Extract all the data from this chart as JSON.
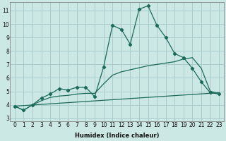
{
  "xlabel": "Humidex (Indice chaleur)",
  "background_color": "#cce8e4",
  "grid_color": "#aacccc",
  "line_color": "#1a6b5a",
  "xlim": [
    -0.5,
    23.5
  ],
  "ylim": [
    2.8,
    11.6
  ],
  "yticks": [
    3,
    4,
    5,
    6,
    7,
    8,
    9,
    10,
    11
  ],
  "xticks": [
    0,
    1,
    2,
    3,
    4,
    5,
    6,
    7,
    8,
    9,
    10,
    11,
    12,
    13,
    14,
    15,
    16,
    17,
    18,
    19,
    20,
    21,
    22,
    23
  ],
  "main_line_x": [
    0,
    1,
    2,
    3,
    4,
    5,
    6,
    7,
    8,
    9,
    10,
    11,
    12,
    13,
    14,
    15,
    16,
    17,
    18,
    19,
    20,
    21,
    22,
    23
  ],
  "main_line_y": [
    3.9,
    3.6,
    4.0,
    4.5,
    4.8,
    5.2,
    5.1,
    5.3,
    5.3,
    4.6,
    6.8,
    9.9,
    9.6,
    8.5,
    11.1,
    11.35,
    9.9,
    9.0,
    7.8,
    7.5,
    6.7,
    5.7,
    4.9,
    4.8
  ],
  "smooth_line_x": [
    0,
    1,
    2,
    3,
    4,
    5,
    6,
    7,
    8,
    9,
    10,
    11,
    12,
    13,
    14,
    15,
    16,
    17,
    18,
    19,
    20,
    21,
    22,
    23
  ],
  "smooth_line_y": [
    3.9,
    3.6,
    4.0,
    4.3,
    4.55,
    4.65,
    4.7,
    4.8,
    4.85,
    4.85,
    5.55,
    6.2,
    6.45,
    6.6,
    6.75,
    6.9,
    7.0,
    7.1,
    7.2,
    7.4,
    7.5,
    6.7,
    5.0,
    4.85
  ],
  "linear_line_x": [
    0,
    23
  ],
  "linear_line_y": [
    3.9,
    4.9
  ]
}
